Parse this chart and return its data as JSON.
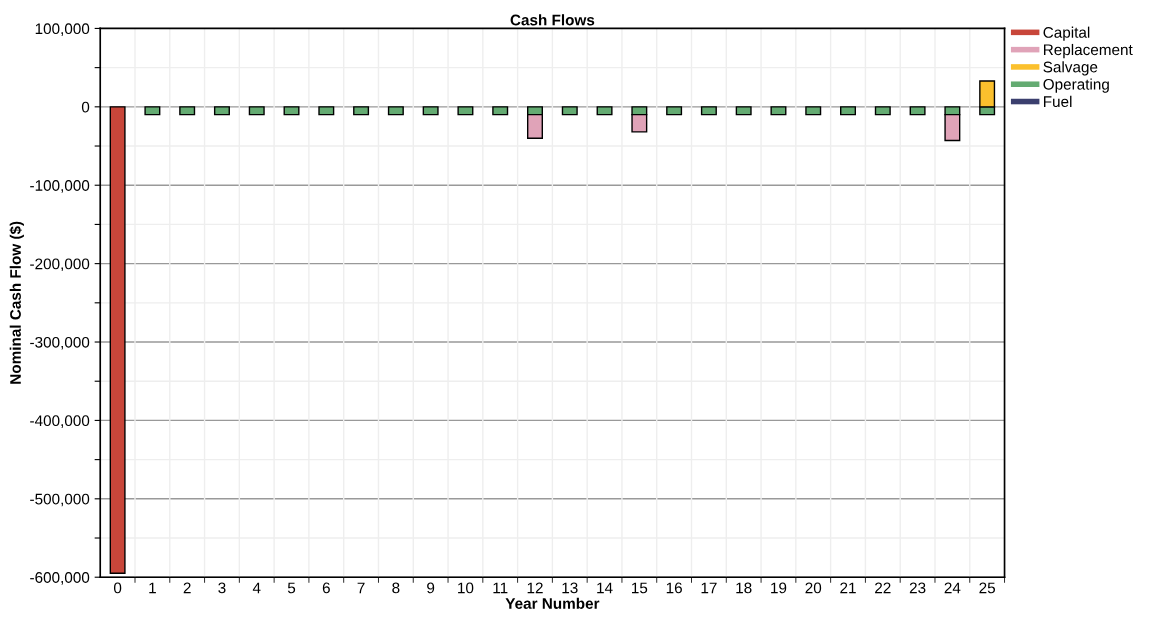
{
  "chart_data": {
    "type": "bar",
    "title": "Cash Flows",
    "xlabel": "Year Number",
    "ylabel": "Nominal Cash Flow ($)",
    "categories": [
      "0",
      "1",
      "2",
      "3",
      "4",
      "5",
      "6",
      "7",
      "8",
      "9",
      "10",
      "11",
      "12",
      "13",
      "14",
      "15",
      "16",
      "17",
      "18",
      "19",
      "20",
      "21",
      "22",
      "23",
      "24",
      "25"
    ],
    "stacked": true,
    "series": [
      {
        "name": "Fuel",
        "color": "#3b3f6e",
        "values": [
          0,
          0,
          0,
          0,
          0,
          0,
          0,
          0,
          0,
          0,
          0,
          0,
          0,
          0,
          0,
          0,
          0,
          0,
          0,
          0,
          0,
          0,
          0,
          0,
          0,
          0
        ]
      },
      {
        "name": "Operating",
        "color": "#64ab72",
        "values": [
          0,
          -10000,
          -10000,
          -10000,
          -10000,
          -10000,
          -10000,
          -10000,
          -10000,
          -10000,
          -10000,
          -10000,
          -10000,
          -10000,
          -10000,
          -10000,
          -10000,
          -10000,
          -10000,
          -10000,
          -10000,
          -10000,
          -10000,
          -10000,
          -10000,
          -10000
        ]
      },
      {
        "name": "Salvage",
        "color": "#fbc02d",
        "values": [
          0,
          0,
          0,
          0,
          0,
          0,
          0,
          0,
          0,
          0,
          0,
          0,
          0,
          0,
          0,
          0,
          0,
          0,
          0,
          0,
          0,
          0,
          0,
          0,
          0,
          33000
        ]
      },
      {
        "name": "Replacement",
        "color": "#e0a3b8",
        "values": [
          0,
          0,
          0,
          0,
          0,
          0,
          0,
          0,
          0,
          0,
          0,
          0,
          -30000,
          0,
          0,
          -22000,
          0,
          0,
          0,
          0,
          0,
          0,
          0,
          0,
          -33000,
          0
        ]
      },
      {
        "name": "Capital",
        "color": "#c8463a",
        "values": [
          -595000,
          0,
          0,
          0,
          0,
          0,
          0,
          0,
          0,
          0,
          0,
          0,
          0,
          0,
          0,
          0,
          0,
          0,
          0,
          0,
          0,
          0,
          0,
          0,
          0,
          0
        ]
      }
    ],
    "ylim": [
      -600000,
      100000
    ],
    "yticks": [
      {
        "value": -600000,
        "label": "-600,000"
      },
      {
        "value": -550000,
        "label": null
      },
      {
        "value": -500000,
        "label": "-500,000"
      },
      {
        "value": -450000,
        "label": null
      },
      {
        "value": -400000,
        "label": "-400,000"
      },
      {
        "value": -350000,
        "label": null
      },
      {
        "value": -300000,
        "label": "-300,000"
      },
      {
        "value": -250000,
        "label": null
      },
      {
        "value": -200000,
        "label": "-200,000"
      },
      {
        "value": -150000,
        "label": null
      },
      {
        "value": -100000,
        "label": "-100,000"
      },
      {
        "value": -50000,
        "label": null
      },
      0,
      {
        "value": 50000,
        "label": null
      },
      {
        "value": 100000,
        "label": "100,000"
      }
    ],
    "grid": true,
    "legend": "top right"
  }
}
